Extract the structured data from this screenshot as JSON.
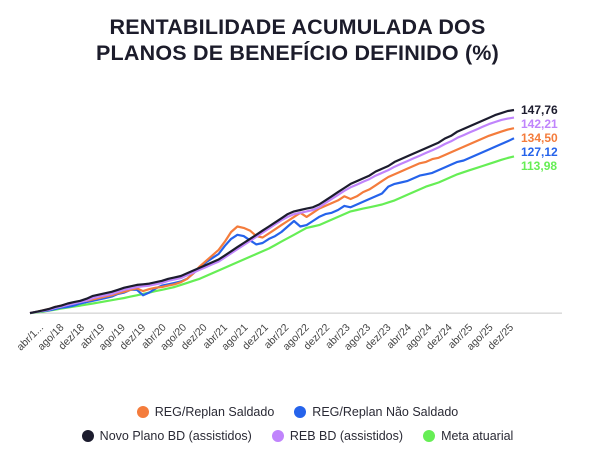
{
  "title_line1": "RENTABILIDADE ACUMULADA DOS",
  "title_line2": "PLANOS DE BENEFÍCIO DEFINIDO (%)",
  "chart_data": {
    "type": "line",
    "title": "RENTABILIDADE ACUMULADA DOS PLANOS DE BENEFÍCIO DEFINIDO (%)",
    "xlabel": "",
    "ylabel": "",
    "x_ticks": [
      "abr/1...",
      "ago/18",
      "dez/18",
      "abr/19",
      "ago/19",
      "dez/19",
      "abr/20",
      "ago/20",
      "dez/20",
      "abr/21",
      "ago/21",
      "dez/21",
      "abr/22",
      "ago/22",
      "dez/22",
      "abr/23",
      "ago/23",
      "dez/23",
      "abr/24",
      "ago/24",
      "dez/24",
      "abr/25",
      "ago/25",
      "dez/25"
    ],
    "ylim": [
      -5,
      155
    ],
    "grid": false,
    "legend_position": "bottom",
    "series": [
      {
        "name": "REG/Replan Saldado",
        "color": "#f47c3c",
        "end_label": "134,50",
        "values": [
          0,
          1.0,
          2.0,
          3.0,
          4.5,
          5.5,
          6.5,
          7.5,
          8.5,
          9.0,
          10.0,
          11.0,
          12.0,
          13.0,
          14.5,
          15.5,
          17.0,
          18.0,
          16.0,
          17.5,
          18.5,
          19.0,
          20.0,
          21.0,
          22.5,
          25.0,
          29.0,
          34.0,
          38.0,
          42.0,
          46.0,
          52.0,
          59.0,
          63.0,
          62.0,
          60.0,
          56.0,
          55.0,
          58.0,
          61.0,
          64.0,
          67.0,
          70.0,
          73.0,
          70.0,
          73.0,
          76.0,
          78.0,
          80.0,
          82.0,
          85.0,
          83.0,
          85.0,
          88.0,
          90.0,
          93.0,
          96.0,
          99.0,
          101.0,
          103.0,
          105.0,
          107.0,
          109.0,
          110.0,
          112.0,
          113.0,
          115.0,
          117.0,
          119.0,
          121.0,
          123.0,
          125.0,
          127.0,
          129.0,
          130.5,
          132.0,
          133.5,
          134.5
        ]
      },
      {
        "name": "REG/Replan Não Saldado",
        "color": "#2563eb",
        "end_label": "127,12",
        "values": [
          0,
          1.0,
          1.5,
          2.0,
          3.0,
          4.0,
          4.5,
          5.5,
          7.0,
          8.0,
          9.0,
          10.0,
          11.0,
          12.0,
          14.0,
          15.0,
          17.0,
          17.0,
          13.0,
          15.0,
          18.0,
          20.0,
          21.0,
          22.0,
          23.0,
          25.0,
          29.0,
          33.0,
          37.0,
          40.0,
          43.0,
          49.0,
          54.0,
          57.0,
          56.0,
          53.0,
          50.0,
          51.0,
          54.0,
          56.0,
          59.0,
          63.0,
          67.0,
          63.0,
          64.0,
          67.0,
          70.0,
          72.0,
          73.0,
          75.0,
          78.0,
          77.0,
          79.0,
          81.0,
          83.0,
          85.0,
          87.0,
          92.0,
          94.0,
          95.0,
          96.0,
          98.0,
          100.0,
          101.0,
          102.0,
          104.0,
          106.0,
          108.0,
          110.0,
          111.0,
          113.0,
          115.0,
          117.0,
          119.0,
          121.0,
          123.0,
          125.0,
          127.12
        ]
      },
      {
        "name": "Novo Plano BD (assistidos)",
        "color": "#1c1c2e",
        "end_label": "147,76",
        "values": [
          0,
          1.0,
          2.0,
          3.0,
          4.5,
          5.5,
          7.0,
          8.0,
          9.0,
          10.5,
          12.5,
          13.5,
          14.5,
          15.5,
          17.0,
          18.5,
          19.5,
          20.5,
          21.0,
          21.5,
          22.5,
          23.5,
          25.0,
          26.0,
          27.0,
          29.0,
          31.0,
          33.0,
          35.0,
          37.0,
          39.0,
          42.0,
          45.0,
          48.0,
          51.0,
          54.0,
          57.0,
          60.0,
          63.0,
          66.0,
          69.0,
          72.0,
          74.0,
          75.0,
          76.0,
          77.0,
          79.0,
          82.0,
          85.0,
          88.0,
          91.0,
          94.0,
          96.0,
          98.0,
          100.0,
          103.0,
          105.0,
          107.0,
          110.0,
          112.0,
          114.0,
          116.0,
          118.0,
          120.0,
          122.0,
          124.0,
          127.0,
          129.0,
          132.0,
          134.0,
          136.0,
          138.0,
          140.0,
          142.0,
          144.0,
          145.5,
          147.0,
          147.76
        ]
      },
      {
        "name": "REB BD (assistidos)",
        "color": "#c084fc",
        "end_label": "142,21",
        "values": [
          0,
          0.8,
          1.6,
          2.5,
          3.8,
          4.8,
          6.0,
          7.0,
          8.0,
          9.2,
          11.0,
          12.0,
          13.0,
          14.0,
          15.5,
          17.0,
          18.0,
          19.0,
          19.5,
          20.0,
          21.0,
          22.0,
          23.5,
          24.5,
          25.5,
          27.5,
          29.5,
          31.5,
          33.5,
          35.5,
          37.5,
          40.5,
          43.5,
          46.5,
          49.5,
          52.5,
          55.5,
          58.5,
          61.5,
          64.5,
          67.5,
          70.0,
          72.0,
          73.0,
          74.0,
          75.0,
          77.0,
          80.0,
          83.0,
          86.0,
          89.0,
          91.5,
          93.5,
          95.5,
          97.5,
          100.0,
          102.0,
          104.0,
          106.5,
          108.5,
          110.5,
          112.5,
          114.5,
          116.5,
          118.5,
          120.5,
          123.0,
          125.0,
          127.5,
          129.5,
          131.5,
          133.5,
          135.5,
          137.5,
          139.0,
          140.5,
          141.5,
          142.21
        ]
      },
      {
        "name": "Meta atuarial",
        "color": "#66ee55",
        "end_label": "113,98",
        "values": [
          0,
          0.5,
          1.0,
          1.8,
          2.5,
          3.3,
          4.0,
          4.8,
          5.5,
          6.3,
          7.0,
          7.8,
          8.6,
          9.4,
          10.2,
          11.0,
          12.0,
          13.0,
          14.0,
          15.0,
          16.0,
          17.0,
          18.0,
          19.0,
          20.5,
          22.0,
          23.5,
          25.0,
          27.0,
          29.0,
          31.0,
          33.0,
          35.0,
          37.0,
          39.0,
          41.0,
          43.0,
          45.0,
          47.0,
          49.5,
          52.0,
          54.5,
          57.0,
          59.5,
          62.0,
          63.0,
          64.0,
          66.0,
          68.0,
          70.0,
          72.0,
          74.0,
          75.0,
          76.0,
          77.0,
          78.0,
          79.0,
          80.5,
          82.0,
          84.0,
          86.0,
          88.0,
          90.0,
          92.0,
          93.5,
          95.0,
          97.0,
          99.0,
          101.0,
          102.5,
          104.0,
          105.5,
          107.0,
          108.5,
          110.0,
          111.5,
          112.8,
          113.98
        ]
      }
    ]
  }
}
